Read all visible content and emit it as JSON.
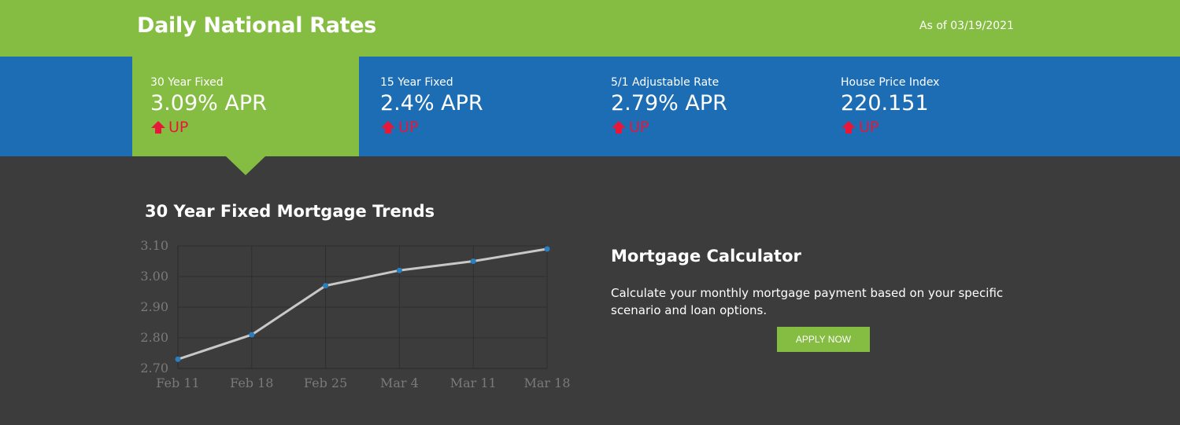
{
  "header": {
    "title": "Daily National Rates",
    "as_of": "As of 03/19/2021"
  },
  "rates": [
    {
      "label": "30 Year Fixed",
      "value": "3.09% APR",
      "trend": "UP",
      "active": true
    },
    {
      "label": "15 Year Fixed",
      "value": "2.4% APR",
      "trend": "UP",
      "active": false
    },
    {
      "label": "5/1 Adjustable Rate",
      "value": "2.79% APR",
      "trend": "UP",
      "active": false
    },
    {
      "label": "House Price Index",
      "value": "220.151",
      "trend": "UP",
      "active": false
    }
  ],
  "colors": {
    "brand_green": "#84bd41",
    "brand_blue": "#1c6db3",
    "background": "#3c3c3c",
    "trend_up": "#e8173a",
    "line": "#c8c8c8",
    "point": "#2a7fc0"
  },
  "icons": {
    "trend": "arrow-up-icon"
  },
  "chart_title": "30 Year Fixed Mortgage Trends",
  "chart_data": {
    "type": "line",
    "title": "30 Year Fixed Mortgage Trends",
    "categories": [
      "Feb 11",
      "Feb 18",
      "Feb 25",
      "Mar 4",
      "Mar 11",
      "Mar 18"
    ],
    "values": [
      2.73,
      2.81,
      2.97,
      3.02,
      3.05,
      3.09
    ],
    "y_ticks": [
      "2.70",
      "2.80",
      "2.90",
      "3.00",
      "3.10"
    ],
    "ylim": [
      2.7,
      3.1
    ],
    "grid": true,
    "xlabel": "",
    "ylabel": ""
  },
  "calculator": {
    "title": "Mortgage Calculator",
    "description": "Calculate your monthly mortgage payment based on your specific scenario and loan options.",
    "button_label": "APPLY NOW"
  }
}
